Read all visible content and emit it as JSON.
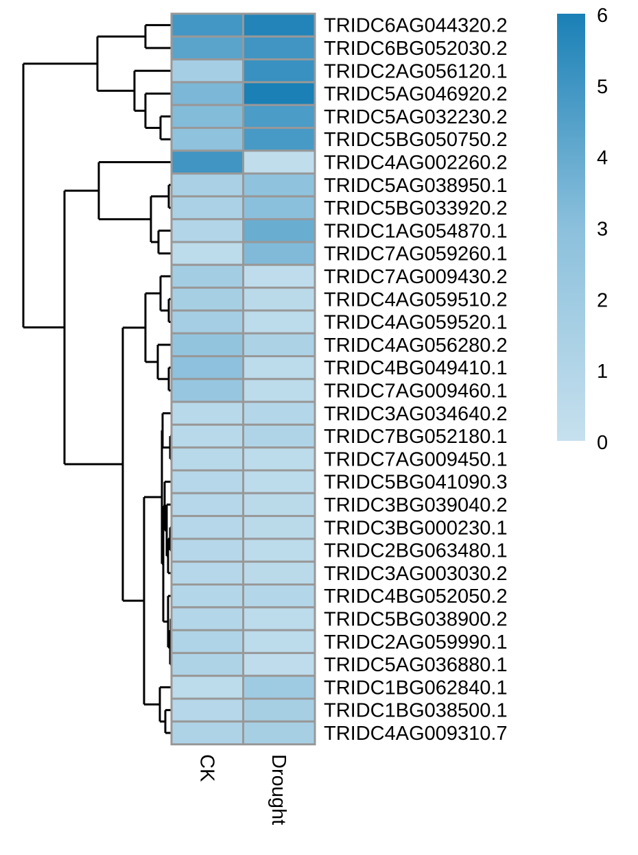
{
  "chart_data": {
    "type": "heatmap",
    "title": "",
    "columns": [
      "CK",
      "Drought"
    ],
    "rows": [
      "TRIDC6AG044320.2",
      "TRIDC6BG052030.2",
      "TRIDC2AG056120.1",
      "TRIDC5AG046920.2",
      "TRIDC5AG032230.2",
      "TRIDC5BG050750.2",
      "TRIDC4AG002260.2",
      "TRIDC5AG038950.1",
      "TRIDC5BG033920.2",
      "TRIDC1AG054870.1",
      "TRIDC7AG059260.1",
      "TRIDC7AG009430.2",
      "TRIDC4AG059510.2",
      "TRIDC4AG059520.1",
      "TRIDC4AG056280.2",
      "TRIDC4BG049410.1",
      "TRIDC7AG009460.1",
      "TRIDC3AG034640.2",
      "TRIDC7BG052180.1",
      "TRIDC7AG009450.1",
      "TRIDC5BG041090.3",
      "TRIDC3BG039040.2",
      "TRIDC3BG000230.1",
      "TRIDC2BG063480.1",
      "TRIDC3AG003030.2",
      "TRIDC4BG052050.2",
      "TRIDC5BG038900.2",
      "TRIDC2AG059990.1",
      "TRIDC5AG036880.1",
      "TRIDC1BG062840.1",
      "TRIDC1BG038500.1",
      "TRIDC4AG009310.7"
    ],
    "values": [
      [
        4.9,
        5.8
      ],
      [
        4.3,
        5.0
      ],
      [
        1.7,
        5.2
      ],
      [
        3.4,
        6.0
      ],
      [
        3.2,
        4.7
      ],
      [
        2.8,
        4.8
      ],
      [
        5.0,
        0.3
      ],
      [
        1.5,
        2.8
      ],
      [
        1.4,
        3.0
      ],
      [
        1.0,
        3.9
      ],
      [
        0.5,
        3.3
      ],
      [
        1.8,
        0.4
      ],
      [
        1.6,
        0.6
      ],
      [
        1.7,
        0.5
      ],
      [
        2.6,
        1.3
      ],
      [
        2.9,
        0.5
      ],
      [
        2.4,
        0.5
      ],
      [
        0.7,
        0.9
      ],
      [
        0.7,
        1.1
      ],
      [
        0.7,
        0.5
      ],
      [
        0.8,
        0.5
      ],
      [
        0.8,
        0.6
      ],
      [
        0.8,
        0.6
      ],
      [
        0.8,
        0.5
      ],
      [
        0.8,
        0.6
      ],
      [
        0.9,
        0.9
      ],
      [
        0.9,
        0.5
      ],
      [
        1.1,
        0.5
      ],
      [
        1.2,
        0.4
      ],
      [
        0.5,
        2.0
      ],
      [
        0.8,
        1.6
      ],
      [
        1.2,
        1.6
      ]
    ],
    "colorbar": {
      "min": 0,
      "max": 6,
      "ticks": [
        "0",
        "1",
        "2",
        "3",
        "4",
        "5",
        "6"
      ]
    },
    "colors": {
      "low": "#c6e0ee",
      "mid": "#8bc0dc",
      "high": "#1a80b6",
      "grid": "#989898"
    },
    "legend_placement": "top-right"
  }
}
